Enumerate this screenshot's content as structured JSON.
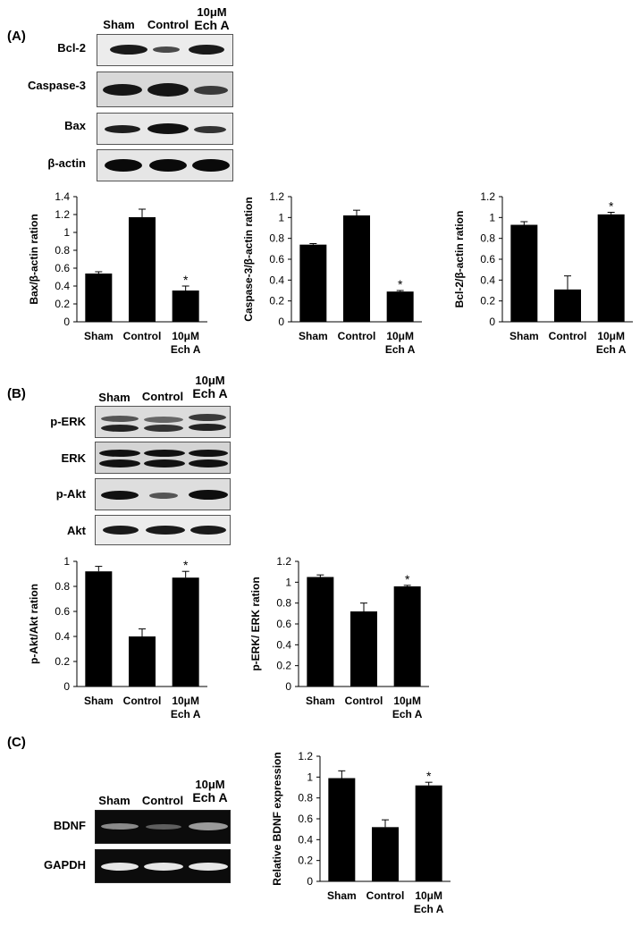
{
  "panels": {
    "a": "(A)",
    "b": "(B)",
    "c": "(C)"
  },
  "lanes": {
    "sham": "Sham",
    "control": "Control",
    "ech_top": "10μM",
    "ech_bottom": "Ech A"
  },
  "blot_a_rows": [
    "Bcl-2",
    "Caspase-3",
    "Bax",
    "β-actin"
  ],
  "blot_b_rows": [
    "p-ERK",
    "ERK",
    "p-Akt",
    "Akt"
  ],
  "gel_c_rows": [
    "BDNF",
    "GAPDH"
  ],
  "chart_data": [
    {
      "id": "bax",
      "type": "bar",
      "categories": [
        "Sham",
        "Control",
        "10μM Ech A"
      ],
      "values": [
        0.54,
        1.17,
        0.35
      ],
      "errors": [
        0.02,
        0.09,
        0.05
      ],
      "significance": [
        "",
        "",
        "*"
      ],
      "ylabel": "Bax/β-actin ration",
      "ylim": [
        0,
        1.4
      ],
      "ticks": [
        0,
        0.2,
        0.4,
        0.6,
        0.8,
        1,
        1.2,
        1.4
      ]
    },
    {
      "id": "casp",
      "type": "bar",
      "categories": [
        "Sham",
        "Control",
        "10μM Ech A"
      ],
      "values": [
        0.74,
        1.02,
        0.29
      ],
      "errors": [
        0.01,
        0.05,
        0.01
      ],
      "significance": [
        "",
        "",
        "*"
      ],
      "ylabel": "Caspase-3/β-actin ration",
      "ylim": [
        0,
        1.2
      ],
      "ticks": [
        0,
        0.2,
        0.4,
        0.6,
        0.8,
        1,
        1.2
      ]
    },
    {
      "id": "bcl",
      "type": "bar",
      "categories": [
        "Sham",
        "Control",
        "10μM Ech A"
      ],
      "values": [
        0.93,
        0.31,
        1.03
      ],
      "errors": [
        0.03,
        0.13,
        0.02
      ],
      "significance": [
        "",
        "",
        "*"
      ],
      "ylabel": "Bcl-2/β-actin ration",
      "ylim": [
        0,
        1.2
      ],
      "ticks": [
        0,
        0.2,
        0.4,
        0.6,
        0.8,
        1,
        1.2
      ]
    },
    {
      "id": "akt",
      "type": "bar",
      "categories": [
        "Sham",
        "Control",
        "10μM Ech A"
      ],
      "values": [
        0.92,
        0.4,
        0.87
      ],
      "errors": [
        0.04,
        0.06,
        0.05
      ],
      "significance": [
        "",
        "",
        "*"
      ],
      "ylabel": "p-Akt/Akt ration",
      "ylim": [
        0,
        1
      ],
      "ticks": [
        0,
        0.2,
        0.4,
        0.6,
        0.8,
        1
      ]
    },
    {
      "id": "erk",
      "type": "bar",
      "categories": [
        "Sham",
        "Control",
        "10μM Ech A"
      ],
      "values": [
        1.05,
        0.72,
        0.96
      ],
      "errors": [
        0.02,
        0.08,
        0.01
      ],
      "significance": [
        "",
        "",
        "*"
      ],
      "ylabel": "p-ERK/ ERK ration",
      "ylim": [
        0,
        1.2
      ],
      "ticks": [
        0,
        0.2,
        0.4,
        0.6,
        0.8,
        1,
        1.2
      ]
    },
    {
      "id": "bdnf",
      "type": "bar",
      "categories": [
        "Sham",
        "Control",
        "10μM Ech A"
      ],
      "values": [
        0.99,
        0.52,
        0.92
      ],
      "errors": [
        0.07,
        0.07,
        0.03
      ],
      "significance": [
        "",
        "",
        "*"
      ],
      "ylabel": "Relative BDNF expression",
      "ylim": [
        0,
        1.2
      ],
      "ticks": [
        0,
        0.2,
        0.4,
        0.6,
        0.8,
        1,
        1.2
      ]
    }
  ]
}
